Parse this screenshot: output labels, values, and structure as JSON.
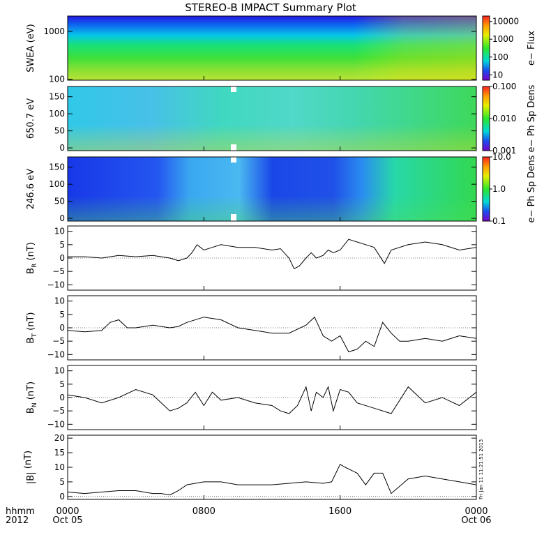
{
  "title": "STEREO-B IMPACT Summary Plot",
  "stamp": "Fri Jan 11 11:21:51 2013",
  "time_axis": {
    "row1_label": "hhmm",
    "row2_label": "2012",
    "ticks": [
      {
        "t": 0,
        "time": "0000",
        "date": "Oct 05"
      },
      {
        "t": 8,
        "time": "0800",
        "date": ""
      },
      {
        "t": 16,
        "time": "1600",
        "date": ""
      },
      {
        "t": 24,
        "time": "0000",
        "date": "Oct 06"
      }
    ]
  },
  "chart_data": [
    {
      "type": "heatmap",
      "ylabel": "SWEA (eV)",
      "yscale": "log",
      "ylim": [
        95,
        2100
      ],
      "yticks": [
        {
          "v": 100,
          "label": "100"
        },
        {
          "v": 1000,
          "label": "1000"
        }
      ],
      "colorbar": {
        "label": "e− Flux",
        "scale": "log",
        "range": [
          5,
          20000
        ],
        "ticks": [
          {
            "v": 10,
            "label": "10"
          },
          {
            "v": 100,
            "label": "100"
          },
          {
            "v": 1000,
            "label": "1000"
          },
          {
            "v": 10000,
            "label": "10000"
          }
        ]
      }
    },
    {
      "type": "heatmap",
      "ylabel": "650.7 eV",
      "ylim": [
        -8,
        180
      ],
      "yticks": [
        {
          "v": 0,
          "label": "0"
        },
        {
          "v": 50,
          "label": "50"
        },
        {
          "v": 100,
          "label": "100"
        },
        {
          "v": 150,
          "label": "150"
        }
      ],
      "colorbar": {
        "label": "e− Ph Sp Dens",
        "scale": "log",
        "range": [
          0.001,
          0.1
        ],
        "ticks": [
          {
            "v": 0.001,
            "label": "0.001"
          },
          {
            "v": 0.01,
            "label": "0.010"
          },
          {
            "v": 0.1,
            "label": "0.100"
          }
        ]
      }
    },
    {
      "type": "heatmap",
      "ylabel": "246.6 eV",
      "ylim": [
        -8,
        180
      ],
      "yticks": [
        {
          "v": 0,
          "label": "0"
        },
        {
          "v": 50,
          "label": "50"
        },
        {
          "v": 100,
          "label": "100"
        },
        {
          "v": 150,
          "label": "150"
        }
      ],
      "colorbar": {
        "label": "e− Ph Sp Dens",
        "scale": "log",
        "range": [
          0.1,
          10
        ],
        "ticks": [
          {
            "v": 0.1,
            "label": "0.1"
          },
          {
            "v": 1,
            "label": "1.0"
          },
          {
            "v": 10,
            "label": "10.0"
          }
        ]
      }
    },
    {
      "type": "line",
      "ylabel_main": "B",
      "ylabel_sub": "R",
      "ylabel_unit": " (nT)",
      "ylim": [
        -12,
        12
      ],
      "yticks": [
        {
          "v": -10,
          "label": "−10"
        },
        {
          "v": -5,
          "label": "−5"
        },
        {
          "v": 0,
          "label": "0"
        },
        {
          "v": 5,
          "label": "5"
        },
        {
          "v": 10,
          "label": "10"
        }
      ],
      "x": [
        0,
        1,
        2,
        3,
        4,
        5,
        5.5,
        6,
        6.5,
        7,
        7.3,
        7.6,
        8,
        8.5,
        9,
        9.5,
        10,
        11,
        12,
        12.5,
        13,
        13.3,
        13.6,
        14,
        14.3,
        14.6,
        15,
        15.3,
        15.6,
        16,
        16.5,
        17,
        17.5,
        18,
        18.3,
        18.6,
        19,
        20,
        21,
        22,
        23,
        24
      ],
      "y": [
        0.5,
        0.5,
        0,
        1,
        0.5,
        1,
        0.5,
        0,
        -1,
        0,
        2,
        5,
        3,
        4,
        5,
        4.5,
        4,
        4,
        3,
        3.5,
        0,
        -4,
        -3,
        0,
        2,
        0,
        1,
        3,
        2,
        3,
        7,
        6,
        5,
        4,
        1,
        -2,
        3,
        5,
        6,
        5,
        3,
        4
      ]
    },
    {
      "type": "line",
      "ylabel_main": "B",
      "ylabel_sub": "T",
      "ylabel_unit": " (nT)",
      "ylim": [
        -12,
        12
      ],
      "yticks": [
        {
          "v": -10,
          "label": "−10"
        },
        {
          "v": -5,
          "label": "−5"
        },
        {
          "v": 0,
          "label": "0"
        },
        {
          "v": 5,
          "label": "5"
        },
        {
          "v": 10,
          "label": "10"
        }
      ],
      "x": [
        0,
        1,
        2,
        2.5,
        3,
        3.5,
        4,
        5,
        6,
        6.5,
        7,
        8,
        9,
        10,
        11,
        12,
        13,
        14,
        14.5,
        15,
        15.5,
        16,
        16.5,
        17,
        17.5,
        18,
        18.5,
        19,
        19.5,
        20,
        21,
        22,
        23,
        24
      ],
      "y": [
        -1,
        -1.5,
        -1,
        2,
        3,
        0,
        0,
        1,
        0,
        0.5,
        2,
        4,
        3,
        0,
        -1,
        -2,
        -2,
        1,
        4,
        -3,
        -5,
        -3,
        -9,
        -8,
        -5,
        -7,
        2,
        -2,
        -5,
        -5,
        -4,
        -5,
        -3,
        -4
      ]
    },
    {
      "type": "line",
      "ylabel_main": "B",
      "ylabel_sub": "N",
      "ylabel_unit": " (nT)",
      "ylim": [
        -12,
        12
      ],
      "yticks": [
        {
          "v": -10,
          "label": "−10"
        },
        {
          "v": -5,
          "label": "−5"
        },
        {
          "v": 0,
          "label": "0"
        },
        {
          "v": 5,
          "label": "5"
        },
        {
          "v": 10,
          "label": "10"
        }
      ],
      "x": [
        0,
        1,
        2,
        3,
        4,
        5,
        6,
        6.5,
        7,
        7.5,
        8,
        8.5,
        9,
        10,
        11,
        12,
        12.5,
        13,
        13.5,
        14,
        14.3,
        14.6,
        15,
        15.3,
        15.6,
        16,
        16.5,
        17,
        18,
        19,
        20,
        21,
        22,
        23,
        24
      ],
      "y": [
        1,
        0,
        -2,
        0,
        3,
        1,
        -5,
        -4,
        -2,
        2,
        -3,
        2,
        -1,
        0,
        -2,
        -3,
        -5,
        -6,
        -3,
        4,
        -5,
        2,
        0,
        4,
        -5,
        3,
        2,
        -2,
        -4,
        -6,
        4,
        -2,
        0,
        -3,
        2
      ]
    },
    {
      "type": "line",
      "ylabel_main": "|B|",
      "ylabel_sub": "",
      "ylabel_unit": " (nT)",
      "ylim": [
        -1,
        21
      ],
      "yticks": [
        {
          "v": 0,
          "label": "0"
        },
        {
          "v": 5,
          "label": "5"
        },
        {
          "v": 10,
          "label": "10"
        },
        {
          "v": 15,
          "label": "15"
        },
        {
          "v": 20,
          "label": "20"
        }
      ],
      "x": [
        0,
        1,
        2,
        3,
        4,
        5,
        5.5,
        6,
        6.5,
        7,
        8,
        9,
        10,
        11,
        12,
        13,
        14,
        15,
        15.5,
        16,
        16.3,
        17,
        17.5,
        18,
        18.5,
        19,
        20,
        21,
        22,
        23,
        24
      ],
      "y": [
        1.5,
        1,
        1.5,
        2,
        2,
        1,
        1,
        0.5,
        2,
        4,
        5,
        5,
        4,
        4,
        4,
        4.5,
        5,
        4.5,
        5,
        11,
        10,
        8,
        4,
        8,
        8,
        1,
        6,
        7,
        6,
        5,
        4
      ]
    }
  ]
}
